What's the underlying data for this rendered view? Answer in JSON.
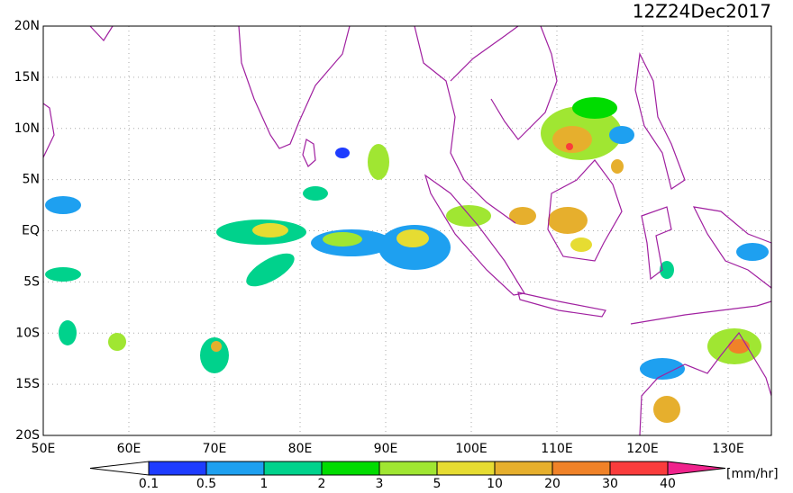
{
  "header": {
    "title": "12Z24Dec2017"
  },
  "map": {
    "lat_labels": [
      "20N",
      "15N",
      "10N",
      "5N",
      "EQ",
      "5S",
      "10S",
      "15S",
      "20S"
    ],
    "lon_labels": [
      "50E",
      "60E",
      "70E",
      "80E",
      "90E",
      "100E",
      "110E",
      "120E",
      "130E"
    ]
  },
  "colorbar": {
    "levels": [
      0.1,
      0.5,
      1,
      2,
      3,
      5,
      10,
      20,
      30,
      40
    ],
    "colors": [
      "#1e3cff",
      "#1ea0f0",
      "#00d28c",
      "#00dc00",
      "#a0e632",
      "#e6dc32",
      "#e6af2d",
      "#f08228",
      "#fa3c3c"
    ],
    "over_color": "#f0238c",
    "unit": "[mm/hr]"
  }
}
